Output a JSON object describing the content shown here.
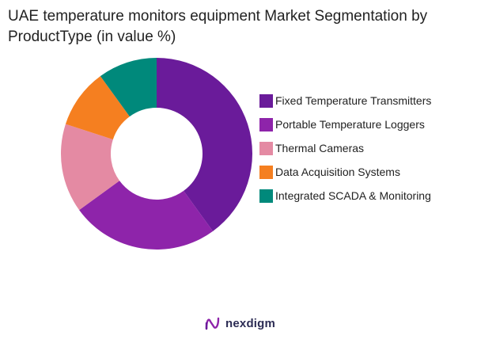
{
  "chart_data": {
    "type": "pie",
    "title": "UAE temperature monitors equipment Market Segmentation by ProductType (in value %)",
    "donut": true,
    "legend_position": "right",
    "series": [
      {
        "name": "Fixed Temperature Transmitters",
        "value": 40,
        "color": "#6a1b9a"
      },
      {
        "name": "Portable Temperature Loggers",
        "value": 25,
        "color": "#8e24aa"
      },
      {
        "name": "Thermal Cameras",
        "value": 15,
        "color": "#e48aa3"
      },
      {
        "name": "Data Acquisition Systems",
        "value": 10,
        "color": "#f57f20"
      },
      {
        "name": "Integrated SCADA & Monitoring",
        "value": 10,
        "color": "#00897b"
      }
    ]
  },
  "brand": {
    "name": "nexdigm",
    "color": "#2c2c54"
  }
}
